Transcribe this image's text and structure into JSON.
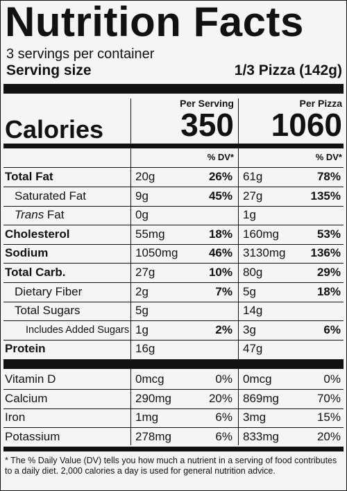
{
  "title": "Nutrition Facts",
  "servings": "3 servings per container",
  "serving_size_label": "Serving size",
  "serving_size_value": "1/3 Pizza (142g)",
  "columns": {
    "per_serving": "Per Serving",
    "per_pizza": "Per Pizza"
  },
  "calories": {
    "label": "Calories",
    "per_serving": "350",
    "per_pizza": "1060"
  },
  "dv_header": "% DV*",
  "nutrients": [
    {
      "name": "Total Fat",
      "bold": true,
      "indent": 0,
      "serving_amount": "20g",
      "serving_dv": "26%",
      "pizza_amount": "61g",
      "pizza_dv": "78%"
    },
    {
      "name": "Saturated Fat",
      "bold": false,
      "indent": 1,
      "serving_amount": "9g",
      "serving_dv": "45%",
      "pizza_amount": "27g",
      "pizza_dv": "135%"
    },
    {
      "name": "Trans Fat",
      "bold": false,
      "indent": 2,
      "serving_amount": "0g",
      "serving_dv": "",
      "pizza_amount": "1g",
      "pizza_dv": ""
    },
    {
      "name": "Cholesterol",
      "bold": true,
      "indent": 0,
      "serving_amount": "55mg",
      "serving_dv": "18%",
      "pizza_amount": "160mg",
      "pizza_dv": "53%"
    },
    {
      "name": "Sodium",
      "bold": true,
      "indent": 0,
      "serving_amount": "1050mg",
      "serving_dv": "46%",
      "pizza_amount": "3130mg",
      "pizza_dv": "136%"
    },
    {
      "name": "Total Carb.",
      "bold": true,
      "indent": 0,
      "serving_amount": "27g",
      "serving_dv": "10%",
      "pizza_amount": "80g",
      "pizza_dv": "29%"
    },
    {
      "name": "Dietary Fiber",
      "bold": false,
      "indent": 2,
      "serving_amount": "2g",
      "serving_dv": "7%",
      "pizza_amount": "5g",
      "pizza_dv": "18%"
    },
    {
      "name": "Total Sugars",
      "bold": false,
      "indent": 1,
      "serving_amount": "5g",
      "serving_dv": "",
      "pizza_amount": "14g",
      "pizza_dv": ""
    },
    {
      "name": "Includes Added Sugars",
      "bold": false,
      "indent": 3,
      "serving_amount": "1g",
      "serving_dv": "2%",
      "pizza_amount": "3g",
      "pizza_dv": "6%"
    },
    {
      "name": "Protein",
      "bold": true,
      "indent": 0,
      "serving_amount": "16g",
      "serving_dv": "",
      "pizza_amount": "47g",
      "pizza_dv": ""
    }
  ],
  "vitamins": [
    {
      "name": "Vitamin D",
      "serving_amount": "0mcg",
      "serving_dv": "0%",
      "pizza_amount": "0mcg",
      "pizza_dv": "0%"
    },
    {
      "name": "Calcium",
      "serving_amount": "290mg",
      "serving_dv": "20%",
      "pizza_amount": "869mg",
      "pizza_dv": "70%"
    },
    {
      "name": "Iron",
      "serving_amount": "1mg",
      "serving_dv": "6%",
      "pizza_amount": "3mg",
      "pizza_dv": "15%"
    },
    {
      "name": "Potassium",
      "serving_amount": "278mg",
      "serving_dv": "6%",
      "pizza_amount": "833mg",
      "pizza_dv": "20%"
    }
  ],
  "footnote": "* The % Daily Value (DV) tells you how much a nutrient in a serving of food contributes to a daily diet. 2,000 calories a day is used for general nutrition advice."
}
